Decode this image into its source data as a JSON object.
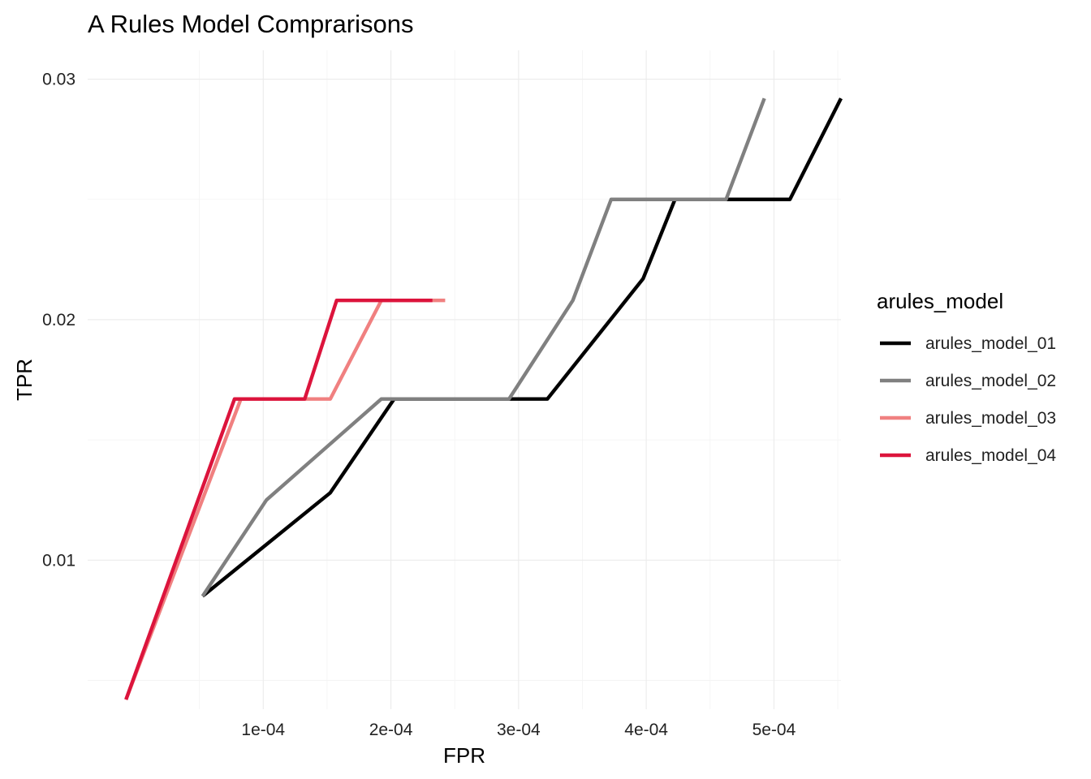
{
  "chart_data": {
    "type": "line",
    "title": "A Rules Model Comprarisons",
    "xlabel": "FPR",
    "ylabel": "TPR",
    "xlim": [
      -3.75e-05,
      0.0005525
    ],
    "ylim": [
      0.0038,
      0.0312
    ],
    "x_ticks": [
      0.0001,
      0.0002,
      0.0003,
      0.0004,
      0.0005
    ],
    "x_tick_labels": [
      "1e-04",
      "2e-04",
      "3e-04",
      "4e-04",
      "5e-04"
    ],
    "y_ticks": [
      0.01,
      0.02,
      0.03
    ],
    "y_tick_labels": [
      "0.01",
      "0.02",
      "0.03"
    ],
    "grid": true,
    "legend": {
      "title": "arules_model",
      "position": "right"
    },
    "series": [
      {
        "name": "arules_model_01",
        "color": "#000000",
        "x": [
          5.25e-05,
          0.0001525,
          0.0002025,
          0.0003025,
          0.0003225,
          0.0003975,
          0.0004225,
          0.0005125,
          0.0005525
        ],
        "y": [
          0.0085,
          0.0128,
          0.0167,
          0.0167,
          0.0167,
          0.0217,
          0.025,
          0.025,
          0.0292
        ]
      },
      {
        "name": "arules_model_02",
        "color": "#808080",
        "x": [
          5.25e-05,
          0.0001025,
          0.0001925,
          0.0002925,
          0.0003425,
          0.0003725,
          0.0004025,
          0.0004625,
          0.0004925
        ],
        "y": [
          0.0085,
          0.0125,
          0.0167,
          0.0167,
          0.0208,
          0.025,
          0.025,
          0.025,
          0.0292
        ]
      },
      {
        "name": "arules_model_03",
        "color": "#f08080",
        "x": [
          -7.5e-06,
          8.25e-05,
          0.0001525,
          0.0001925,
          0.0002425
        ],
        "y": [
          0.0042,
          0.0167,
          0.0167,
          0.0208,
          0.0208
        ]
      },
      {
        "name": "arules_model_04",
        "color": "#dc143c",
        "x": [
          -7.5e-06,
          7.75e-05,
          0.0001325,
          0.0001575,
          0.0002325
        ],
        "y": [
          0.0042,
          0.0167,
          0.0167,
          0.0208,
          0.0208
        ]
      }
    ]
  }
}
